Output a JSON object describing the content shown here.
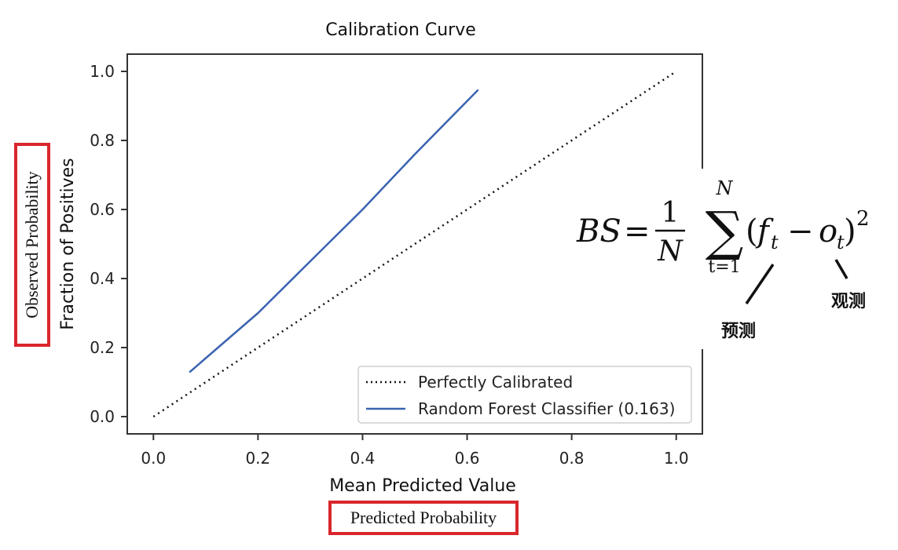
{
  "chart_data": {
    "type": "line",
    "title": "Calibration Curve",
    "xlabel": "Mean Predicted Value",
    "ylabel": "Fraction of Positives",
    "xlim": [
      -0.05,
      1.05
    ],
    "ylim": [
      -0.05,
      1.05
    ],
    "xticks": [
      0.0,
      0.2,
      0.4,
      0.6,
      0.8,
      1.0
    ],
    "yticks": [
      0.0,
      0.2,
      0.4,
      0.6,
      0.8,
      1.0
    ],
    "grid": false,
    "legend": "bottom-right",
    "series": [
      {
        "name": "Perfectly Calibrated",
        "style": "dotted",
        "color": "#111111",
        "x": [
          0.0,
          1.0
        ],
        "y": [
          0.0,
          1.0
        ]
      },
      {
        "name": "Random Forest Classifier (0.163)",
        "style": "solid",
        "color": "#3a63b0",
        "x": [
          0.07,
          0.2,
          0.3,
          0.4,
          0.5,
          0.62
        ],
        "y": [
          0.13,
          0.3,
          0.45,
          0.6,
          0.76,
          0.945
        ]
      }
    ]
  },
  "annotations": {
    "observed": "Observed Probability",
    "predicted": "Predicted Probability",
    "predict_cn": "预测",
    "observe_cn": "观测"
  },
  "formula": {
    "lhs": "BS",
    "eq": "=",
    "numerator": "1",
    "denominator": "N",
    "sum_upper": "N",
    "sum_lower": "t=1",
    "sigma": "∑",
    "open_paren": "(",
    "f": "f",
    "f_sub": "t",
    "minus": "−",
    "o": "o",
    "o_sub": "t",
    "close_paren": ")",
    "power": "2"
  }
}
